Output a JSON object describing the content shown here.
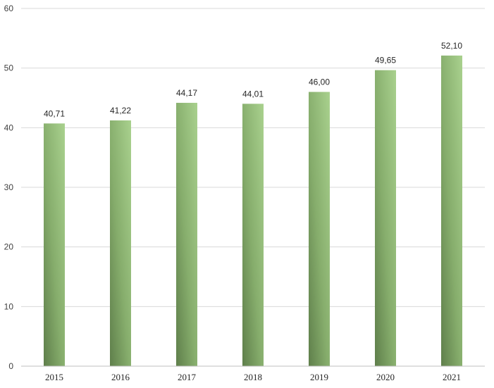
{
  "chart_data": {
    "type": "bar",
    "title": "",
    "xlabel": "",
    "ylabel": "",
    "categories": [
      "2015",
      "2016",
      "2017",
      "2018",
      "2019",
      "2020",
      "2021"
    ],
    "values": [
      40.71,
      41.22,
      44.17,
      44.01,
      46.0,
      49.65,
      52.1
    ],
    "data_labels": [
      "40,71",
      "41,22",
      "44,17",
      "44,01",
      "46,00",
      "49,65",
      "52,10"
    ],
    "ylim": [
      0,
      60
    ],
    "yticks": [
      0,
      10,
      20,
      30,
      40,
      50,
      60
    ],
    "grid": true,
    "legend": "none",
    "colors": {
      "bar_light": "#a9d18e",
      "bar_dark": "#5f7f4b",
      "grid": "#d9d9d9"
    }
  }
}
